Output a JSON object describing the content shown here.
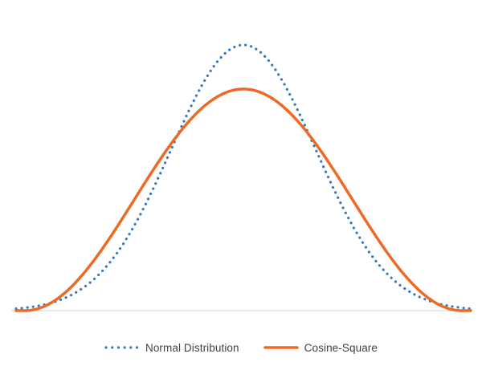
{
  "chart_data": {
    "type": "line",
    "title": "",
    "background_color": "#ffffff",
    "axes": {
      "x_axis_line": true,
      "y_axis_line": false,
      "gridlines": false,
      "tick_labels": false,
      "axis_color": "#D9D9D9"
    },
    "x_range": [
      -1,
      1
    ],
    "y_range": [
      0,
      1.05
    ],
    "series": [
      {
        "name": "Normal Distribution",
        "style": "dotted",
        "color": "#3778BE",
        "line_width": 3.2,
        "curve": "gaussian",
        "mean": 0,
        "sigma": 0.318,
        "peak": 1.0
      },
      {
        "name": "Cosine-Square",
        "style": "solid",
        "color": "#ED6A26",
        "line_width": 3.5,
        "curve": "cosine_squared",
        "mean": 0,
        "half_width": 0.961,
        "peak": 0.834
      }
    ],
    "sample_points": {
      "x": [
        -1.0,
        -0.9,
        -0.8,
        -0.7,
        -0.6,
        -0.5,
        -0.4,
        -0.3,
        -0.2,
        -0.1,
        0.0,
        0.1,
        0.2,
        0.3,
        0.4,
        0.5,
        0.6,
        0.7,
        0.8,
        0.9,
        1.0
      ],
      "normal_distribution": [
        0.007,
        0.018,
        0.042,
        0.089,
        0.169,
        0.29,
        0.453,
        0.641,
        0.82,
        0.952,
        1.0,
        0.952,
        0.82,
        0.641,
        0.453,
        0.29,
        0.169,
        0.089,
        0.042,
        0.018,
        0.007
      ],
      "cosine_square": [
        0.0,
        0.008,
        0.057,
        0.142,
        0.259,
        0.391,
        0.525,
        0.649,
        0.748,
        0.812,
        0.834,
        0.812,
        0.748,
        0.649,
        0.525,
        0.391,
        0.259,
        0.142,
        0.057,
        0.008,
        0.0
      ]
    },
    "legend": {
      "position": "bottom-center",
      "text_color": "#404040",
      "entries": [
        "Normal Distribution",
        "Cosine-Square"
      ]
    }
  }
}
